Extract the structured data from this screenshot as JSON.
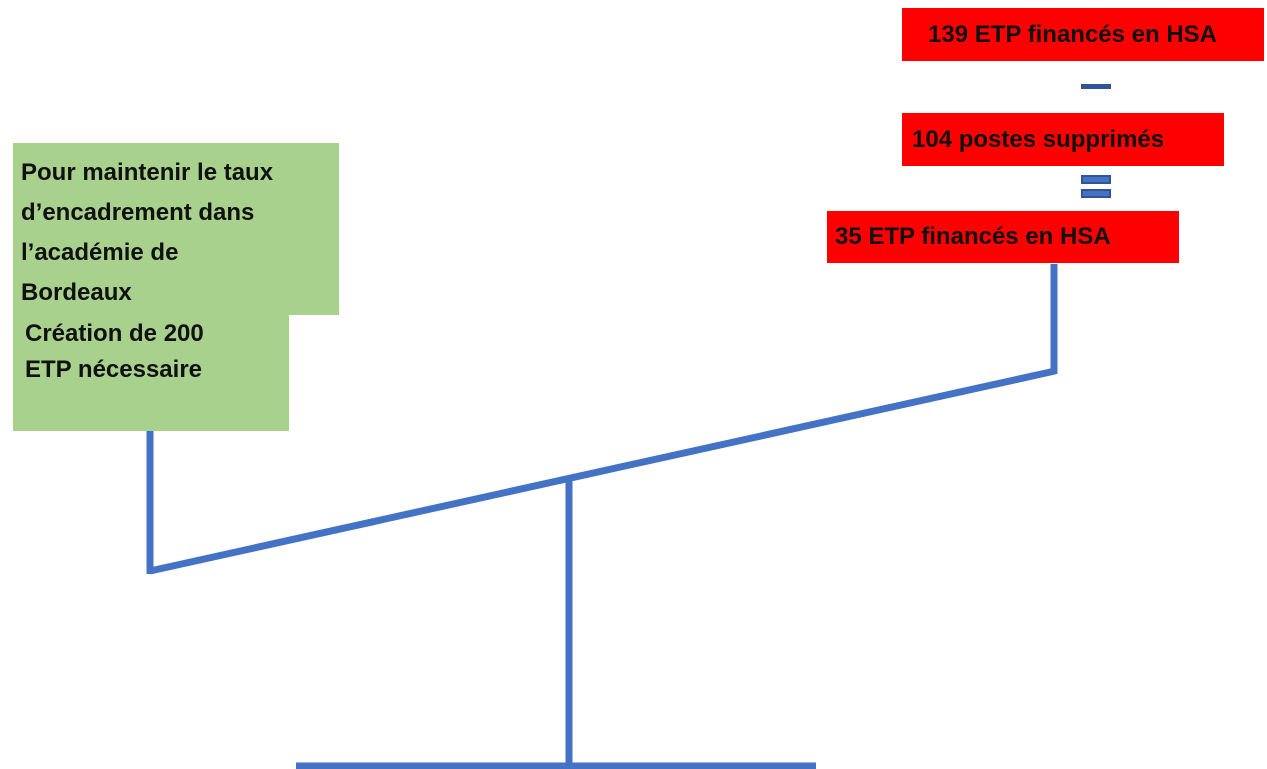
{
  "colors": {
    "scale": "#4472c4",
    "left_box": "#a9d18e",
    "right_boxes": "#ff0000",
    "text": "#111111"
  },
  "left_side": {
    "context_lines": [
      "Pour maintenir le taux",
      "d’encadrement dans",
      "l’académie de",
      "Bordeaux"
    ],
    "need_lines": [
      "Création de 200",
      "ETP nécessaire"
    ]
  },
  "right_side": {
    "term_1": "139 ETP financés en HSA",
    "operator_1": "minus",
    "term_2": "104 postes supprimés",
    "operator_2": "equals",
    "result": "35 ETP financés en HSA"
  }
}
